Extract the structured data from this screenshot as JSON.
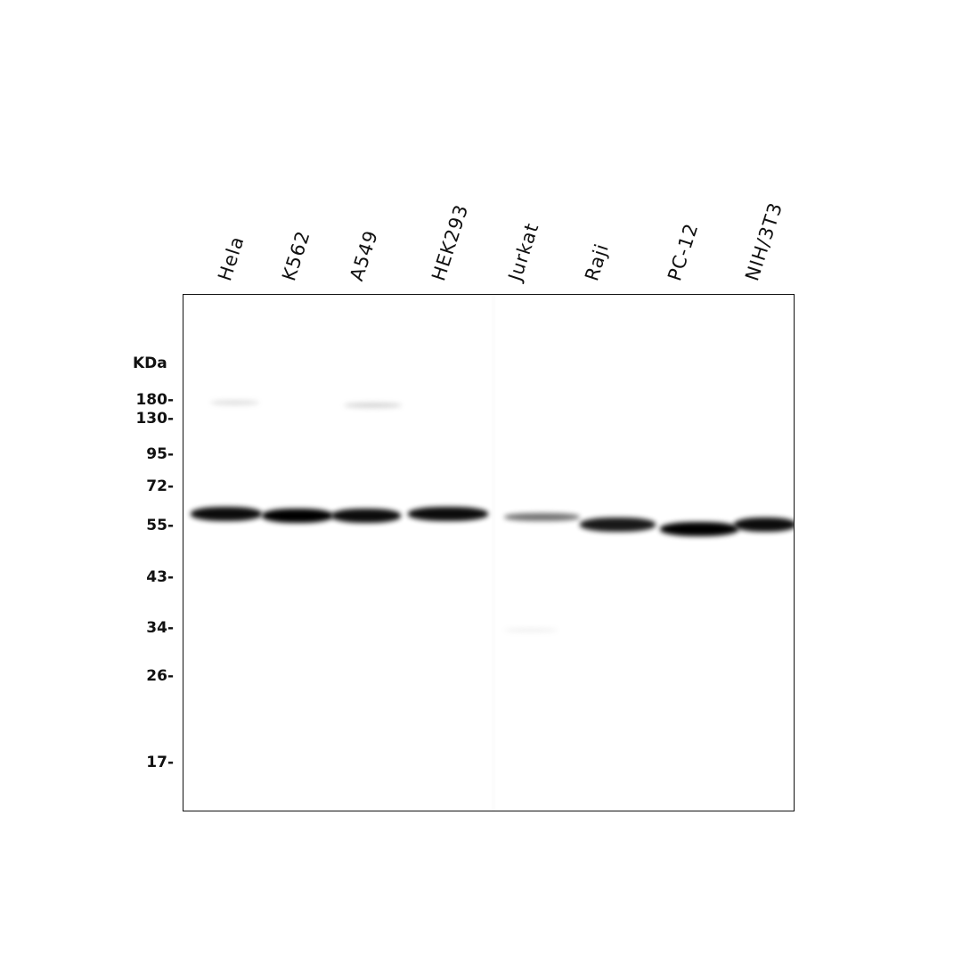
{
  "lanes": [
    {
      "label": "Hela",
      "band_intensity": 0.95
    },
    {
      "label": "K562",
      "band_intensity": 1.0
    },
    {
      "label": "A549",
      "band_intensity": 0.95
    },
    {
      "label": "HEK293",
      "band_intensity": 0.95
    },
    {
      "label": "Jurkat",
      "band_intensity": 0.55
    },
    {
      "label": "Raji",
      "band_intensity": 0.9
    },
    {
      "label": "PC-12",
      "band_intensity": 1.0
    },
    {
      "label": "NIH/3T3",
      "band_intensity": 0.95
    }
  ],
  "marker_unit": "KDa",
  "markers": [
    "180-",
    "130-",
    "95-",
    "72-",
    "55-",
    "43-",
    "34-",
    "26-",
    "17-"
  ],
  "colors": {
    "band": "#000000",
    "background": "#ffffff",
    "frame": "#111111"
  }
}
